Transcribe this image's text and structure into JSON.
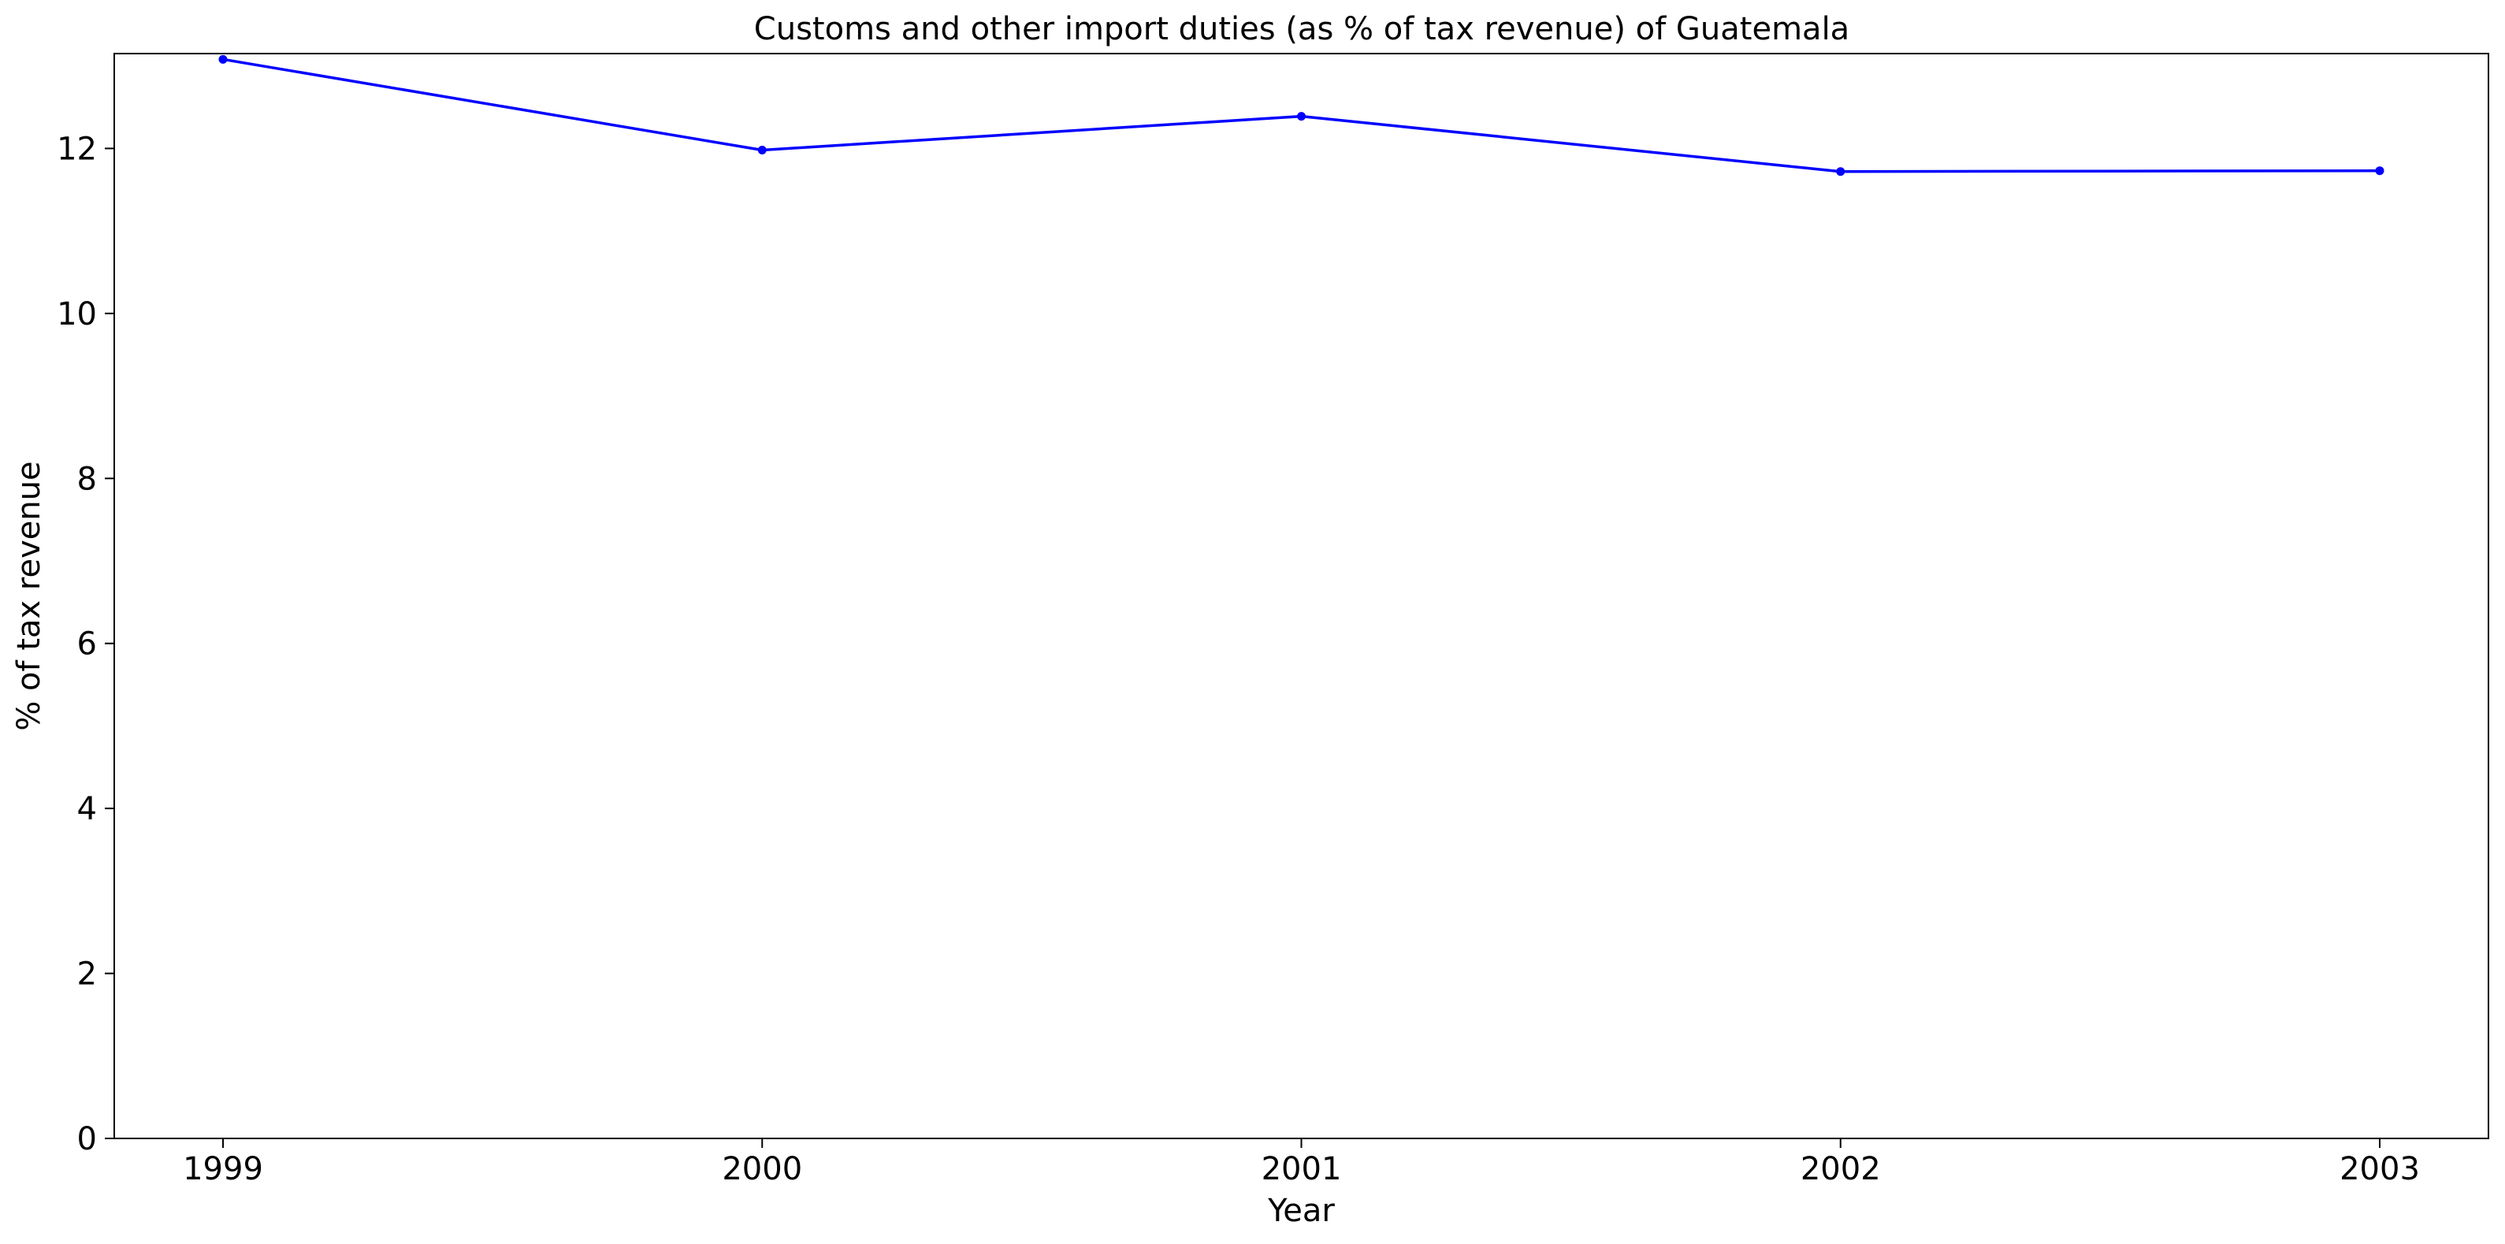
{
  "chart_data": {
    "type": "line",
    "title": "Customs and other import duties (as % of tax revenue) of Guatemala",
    "xlabel": "Year",
    "ylabel": "% of tax revenue",
    "x": [
      "1999",
      "2000",
      "2001",
      "2002",
      "2003"
    ],
    "series": [
      {
        "values": [
          13.08,
          11.98,
          12.39,
          11.72,
          11.73
        ],
        "color": "#0000ff",
        "marker": "circle"
      }
    ],
    "ylim": [
      0,
      13.15
    ],
    "yticks": [
      0,
      2,
      4,
      6,
      8,
      10,
      12
    ],
    "grid": false,
    "legend": "none"
  }
}
